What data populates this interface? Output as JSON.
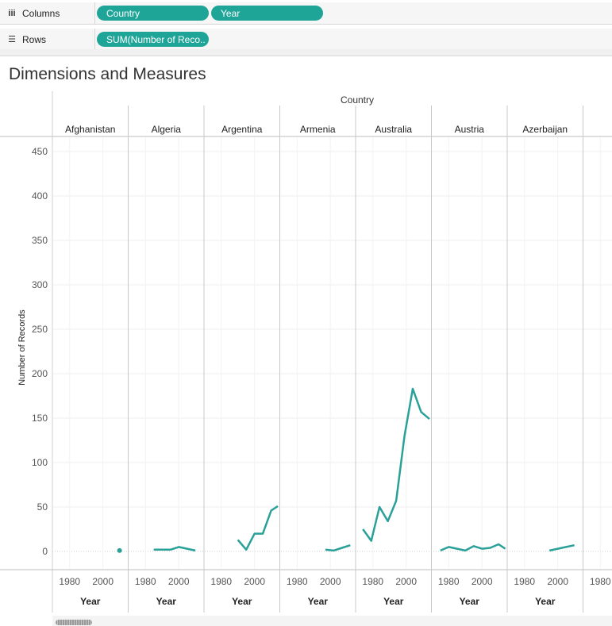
{
  "shelves": {
    "columns": {
      "label": "Columns",
      "icon": "columns-icon",
      "pills": [
        "Country",
        "Year"
      ]
    },
    "rows": {
      "label": "Rows",
      "icon": "rows-icon",
      "pills": [
        "SUM(Number of Reco.."
      ]
    }
  },
  "colors": {
    "accent": "#1fa598",
    "line": "#2aa198"
  },
  "chart_data": {
    "type": "line",
    "title": "Dimensions and Measures",
    "header_label": "Country",
    "ylabel": "Number of Records",
    "xlabel": "Year",
    "ylim": [
      0,
      475
    ],
    "yticks": [
      0,
      50,
      100,
      150,
      200,
      250,
      300,
      350,
      400,
      450
    ],
    "xlim": [
      1972,
      2014
    ],
    "xticks": [
      1980,
      2000
    ],
    "grid": true,
    "panels": [
      {
        "country": "Afghanistan",
        "points": [
          [
            2010,
            1
          ]
        ]
      },
      {
        "country": "Algeria",
        "points": [
          [
            1985,
            2
          ],
          [
            1990,
            2
          ],
          [
            1995,
            2
          ],
          [
            2000,
            5
          ],
          [
            2005,
            3
          ],
          [
            2010,
            1
          ]
        ]
      },
      {
        "country": "Argentina",
        "points": [
          [
            1990,
            13
          ],
          [
            1995,
            2
          ],
          [
            2000,
            20
          ],
          [
            2005,
            20
          ],
          [
            2010,
            46
          ],
          [
            2014,
            51
          ]
        ]
      },
      {
        "country": "Armenia",
        "points": [
          [
            1997,
            2
          ],
          [
            2002,
            1
          ],
          [
            2007,
            4
          ],
          [
            2012,
            7
          ]
        ]
      },
      {
        "country": "Australia",
        "points": [
          [
            1974,
            25
          ],
          [
            1979,
            12
          ],
          [
            1984,
            50
          ],
          [
            1989,
            34
          ],
          [
            1994,
            57
          ],
          [
            1999,
            130
          ],
          [
            2004,
            183
          ],
          [
            2009,
            157
          ],
          [
            2014,
            149
          ]
        ]
      },
      {
        "country": "Austria",
        "points": [
          [
            1975,
            1
          ],
          [
            1980,
            5
          ],
          [
            1985,
            3
          ],
          [
            1990,
            1
          ],
          [
            1995,
            6
          ],
          [
            2000,
            3
          ],
          [
            2005,
            4
          ],
          [
            2010,
            8
          ],
          [
            2014,
            3
          ]
        ]
      },
      {
        "country": "Azerbaijan",
        "points": [
          [
            1995,
            1
          ],
          [
            2000,
            3
          ],
          [
            2005,
            5
          ],
          [
            2010,
            7
          ]
        ]
      },
      {
        "country": "",
        "points": []
      }
    ]
  }
}
